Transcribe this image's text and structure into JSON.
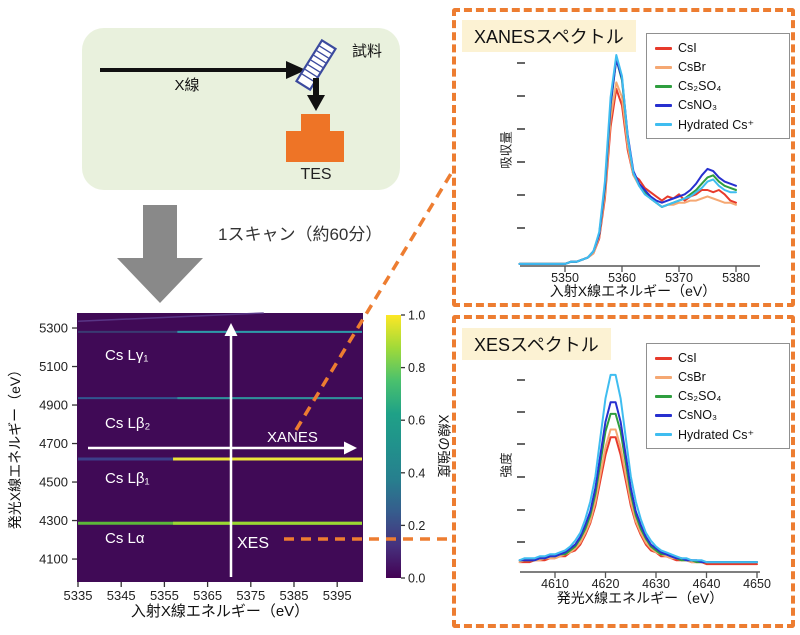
{
  "apparatus": {
    "xray_label": "X線",
    "sample_label": "試料",
    "detector_label": "TES"
  },
  "flow": {
    "scan_label": "1スキャン（約60分）"
  },
  "accent_colors": {
    "connector_orange": "#ed7d31",
    "detector_orange": "#ee7426",
    "diagram_bg_green": "#e9f1dd"
  },
  "chart_data": [
    {
      "type": "heatmap",
      "xlabel": "入射X線エネルギー（eV）",
      "ylabel": "発光X線エネルギー（eV）",
      "x_ticks": [
        5335,
        5345,
        5355,
        5365,
        5375,
        5385,
        5395
      ],
      "y_ticks": [
        5300,
        5100,
        4900,
        4700,
        4500,
        4300,
        4100
      ],
      "x_range": [
        5335,
        5401
      ],
      "y_range": [
        3981,
        5378
      ],
      "background": "#400a56",
      "emission_lines": [
        {
          "label": "",
          "type": "elastic",
          "base_color": "#5e3d8f"
        },
        {
          "label": "Cs Lγ₁",
          "energy_ev": 5280,
          "base_color": "#3a3a72",
          "bright_color": "#2e9aa8",
          "bright_from_ev": 5358,
          "width": 2
        },
        {
          "label": "Cs Lβ₂",
          "energy_ev": 4936,
          "base_color": "#31568f",
          "bright_color": "#2f9199",
          "bright_from_ev": 5358,
          "width": 2
        },
        {
          "label": "Cs Lβ₁",
          "energy_ev": 4620,
          "base_color": "#3c3e8a",
          "bright_color": "#ece43a",
          "bright_from_ev": 5357,
          "width": 3
        },
        {
          "label": "Cs Lα",
          "energy_ev": 4286,
          "base_color": "#5cb83a",
          "bright_color": "#9cd733",
          "bright_from_ev": 5357,
          "width": 3
        }
      ],
      "annotations": {
        "xanes_arrow_label": "XANES",
        "xes_arrow_label": "XES"
      },
      "colorbar": {
        "label": "X線の強度",
        "ticks": [
          "1.0",
          "0.8",
          "0.6",
          "0.4",
          "0.2",
          "0.0"
        ],
        "colors": [
          "#fde725",
          "#a0da39",
          "#4ac16d",
          "#1fa187",
          "#21918c",
          "#277f8e",
          "#365c8d",
          "#46327e",
          "#440154"
        ]
      }
    },
    {
      "type": "line",
      "id": "xanes",
      "title": "XANESスペクトル",
      "xlabel": "入射X線エネルギー（eV）",
      "ylabel": "吸収量",
      "x_ticks": [
        5350,
        5360,
        5370,
        5380
      ],
      "x_range": [
        5342,
        5382
      ],
      "ylim": [
        0,
        1.05
      ],
      "grid": false,
      "legend_position": "upper right",
      "x": [
        5342,
        5343,
        5344,
        5345,
        5346,
        5347,
        5348,
        5349,
        5350,
        5351,
        5352,
        5353,
        5354,
        5355,
        5356,
        5357,
        5358,
        5359,
        5360,
        5361,
        5362,
        5363,
        5364,
        5365,
        5366,
        5367,
        5368,
        5369,
        5370,
        5371,
        5372,
        5373,
        5374,
        5375,
        5376,
        5377,
        5378,
        5379,
        5380
      ],
      "series": [
        {
          "name": "CsI",
          "color": "#e73a2b",
          "values": [
            0.01,
            0.01,
            0.01,
            0.01,
            0.01,
            0.01,
            0.01,
            0.01,
            0.01,
            0.02,
            0.02,
            0.03,
            0.04,
            0.06,
            0.13,
            0.32,
            0.66,
            0.84,
            0.76,
            0.55,
            0.43,
            0.41,
            0.37,
            0.35,
            0.33,
            0.31,
            0.33,
            0.32,
            0.34,
            0.31,
            0.33,
            0.34,
            0.36,
            0.36,
            0.35,
            0.36,
            0.34,
            0.31,
            0.3
          ]
        },
        {
          "name": "CsBr",
          "color": "#f5a873",
          "values": [
            0.01,
            0.01,
            0.01,
            0.01,
            0.01,
            0.01,
            0.01,
            0.01,
            0.01,
            0.02,
            0.02,
            0.03,
            0.04,
            0.06,
            0.14,
            0.34,
            0.7,
            0.87,
            0.8,
            0.57,
            0.43,
            0.38,
            0.35,
            0.32,
            0.3,
            0.28,
            0.29,
            0.29,
            0.3,
            0.3,
            0.31,
            0.31,
            0.32,
            0.33,
            0.32,
            0.31,
            0.3,
            0.3,
            0.29
          ]
        },
        {
          "name": "Cs₂SO₄",
          "color": "#2f9e3f",
          "values": [
            0.01,
            0.01,
            0.01,
            0.01,
            0.01,
            0.01,
            0.01,
            0.01,
            0.01,
            0.02,
            0.02,
            0.03,
            0.04,
            0.07,
            0.15,
            0.37,
            0.76,
            0.98,
            0.88,
            0.61,
            0.44,
            0.39,
            0.35,
            0.32,
            0.3,
            0.28,
            0.29,
            0.3,
            0.31,
            0.32,
            0.34,
            0.36,
            0.39,
            0.42,
            0.43,
            0.4,
            0.38,
            0.37,
            0.36
          ]
        },
        {
          "name": "CsNO₃",
          "color": "#2730cf",
          "values": [
            0.01,
            0.01,
            0.01,
            0.01,
            0.01,
            0.01,
            0.01,
            0.01,
            0.01,
            0.02,
            0.02,
            0.03,
            0.04,
            0.07,
            0.15,
            0.38,
            0.77,
            0.98,
            0.89,
            0.62,
            0.45,
            0.39,
            0.36,
            0.33,
            0.31,
            0.3,
            0.31,
            0.32,
            0.33,
            0.34,
            0.36,
            0.39,
            0.43,
            0.46,
            0.45,
            0.42,
            0.4,
            0.39,
            0.38
          ]
        },
        {
          "name": "Hydrated Cs⁺",
          "color": "#3fbdf0",
          "values": [
            0.01,
            0.01,
            0.01,
            0.01,
            0.01,
            0.01,
            0.01,
            0.01,
            0.01,
            0.02,
            0.02,
            0.03,
            0.04,
            0.07,
            0.16,
            0.4,
            0.8,
            1.0,
            0.9,
            0.61,
            0.44,
            0.38,
            0.34,
            0.32,
            0.3,
            0.28,
            0.29,
            0.3,
            0.31,
            0.32,
            0.33,
            0.35,
            0.37,
            0.4,
            0.41,
            0.38,
            0.36,
            0.35,
            0.35
          ]
        }
      ]
    },
    {
      "type": "line",
      "id": "xes",
      "title": "XESスペクトル",
      "xlabel": "発光X線エネルギー（eV）",
      "ylabel": "強度",
      "x_ticks": [
        4610,
        4620,
        4630,
        4640,
        4650
      ],
      "x_range": [
        4603,
        4650
      ],
      "ylim": [
        0,
        1.05
      ],
      "grid": false,
      "legend_position": "upper right",
      "x": [
        4603,
        4604,
        4605,
        4606,
        4607,
        4608,
        4609,
        4610,
        4611,
        4612,
        4613,
        4614,
        4615,
        4616,
        4617,
        4618,
        4619,
        4620,
        4621,
        4622,
        4623,
        4624,
        4625,
        4626,
        4627,
        4628,
        4629,
        4630,
        4631,
        4632,
        4633,
        4634,
        4635,
        4636,
        4637,
        4638,
        4639,
        4640,
        4641,
        4642,
        4643,
        4644,
        4645,
        4646,
        4647,
        4648,
        4649,
        4650
      ],
      "series": [
        {
          "name": "CsI",
          "color": "#e73a2b",
          "values": [
            0.02,
            0.02,
            0.02,
            0.03,
            0.03,
            0.03,
            0.04,
            0.04,
            0.05,
            0.05,
            0.07,
            0.08,
            0.11,
            0.16,
            0.22,
            0.31,
            0.44,
            0.57,
            0.66,
            0.66,
            0.57,
            0.44,
            0.31,
            0.22,
            0.16,
            0.11,
            0.08,
            0.07,
            0.05,
            0.05,
            0.04,
            0.03,
            0.03,
            0.03,
            0.02,
            0.02,
            0.02,
            0.01,
            0.01,
            0.01,
            0.01,
            0.01,
            0.01,
            0.01,
            0.01,
            0.01,
            0.01,
            0.01
          ]
        },
        {
          "name": "CsBr",
          "color": "#f5a873",
          "values": [
            0.02,
            0.03,
            0.03,
            0.03,
            0.03,
            0.04,
            0.04,
            0.04,
            0.05,
            0.06,
            0.07,
            0.09,
            0.12,
            0.17,
            0.23,
            0.33,
            0.47,
            0.61,
            0.7,
            0.7,
            0.61,
            0.47,
            0.33,
            0.23,
            0.17,
            0.12,
            0.09,
            0.07,
            0.06,
            0.05,
            0.04,
            0.04,
            0.03,
            0.03,
            0.02,
            0.02,
            0.02,
            0.02,
            0.02,
            0.02,
            0.02,
            0.02,
            0.02,
            0.02,
            0.02,
            0.02,
            0.02,
            0.02
          ]
        },
        {
          "name": "Cs₂SO₄",
          "color": "#2f9e3f",
          "values": [
            0.03,
            0.03,
            0.03,
            0.03,
            0.04,
            0.04,
            0.05,
            0.05,
            0.06,
            0.06,
            0.08,
            0.1,
            0.14,
            0.19,
            0.26,
            0.37,
            0.53,
            0.69,
            0.78,
            0.78,
            0.69,
            0.53,
            0.37,
            0.26,
            0.19,
            0.14,
            0.1,
            0.08,
            0.06,
            0.06,
            0.05,
            0.04,
            0.03,
            0.03,
            0.03,
            0.02,
            0.02,
            0.02,
            0.02,
            0.02,
            0.02,
            0.02,
            0.02,
            0.02,
            0.02,
            0.02,
            0.02,
            0.02
          ]
        },
        {
          "name": "CsNO₃",
          "color": "#2730cf",
          "values": [
            0.03,
            0.03,
            0.03,
            0.03,
            0.04,
            0.04,
            0.05,
            0.05,
            0.06,
            0.07,
            0.09,
            0.11,
            0.15,
            0.21,
            0.28,
            0.4,
            0.57,
            0.74,
            0.84,
            0.84,
            0.74,
            0.57,
            0.4,
            0.28,
            0.21,
            0.15,
            0.11,
            0.09,
            0.07,
            0.06,
            0.05,
            0.04,
            0.04,
            0.03,
            0.03,
            0.03,
            0.02,
            0.02,
            0.02,
            0.02,
            0.02,
            0.02,
            0.02,
            0.02,
            0.02,
            0.02,
            0.02,
            0.02
          ]
        },
        {
          "name": "Hydrated Cs⁺",
          "color": "#3fbdf0",
          "values": [
            0.03,
            0.04,
            0.04,
            0.04,
            0.05,
            0.05,
            0.06,
            0.06,
            0.07,
            0.08,
            0.1,
            0.13,
            0.17,
            0.24,
            0.33,
            0.46,
            0.66,
            0.86,
            0.98,
            0.98,
            0.86,
            0.66,
            0.46,
            0.33,
            0.24,
            0.17,
            0.13,
            0.1,
            0.08,
            0.07,
            0.06,
            0.05,
            0.04,
            0.04,
            0.03,
            0.03,
            0.03,
            0.02,
            0.02,
            0.02,
            0.02,
            0.02,
            0.02,
            0.02,
            0.02,
            0.02,
            0.02,
            0.02
          ]
        }
      ]
    }
  ]
}
